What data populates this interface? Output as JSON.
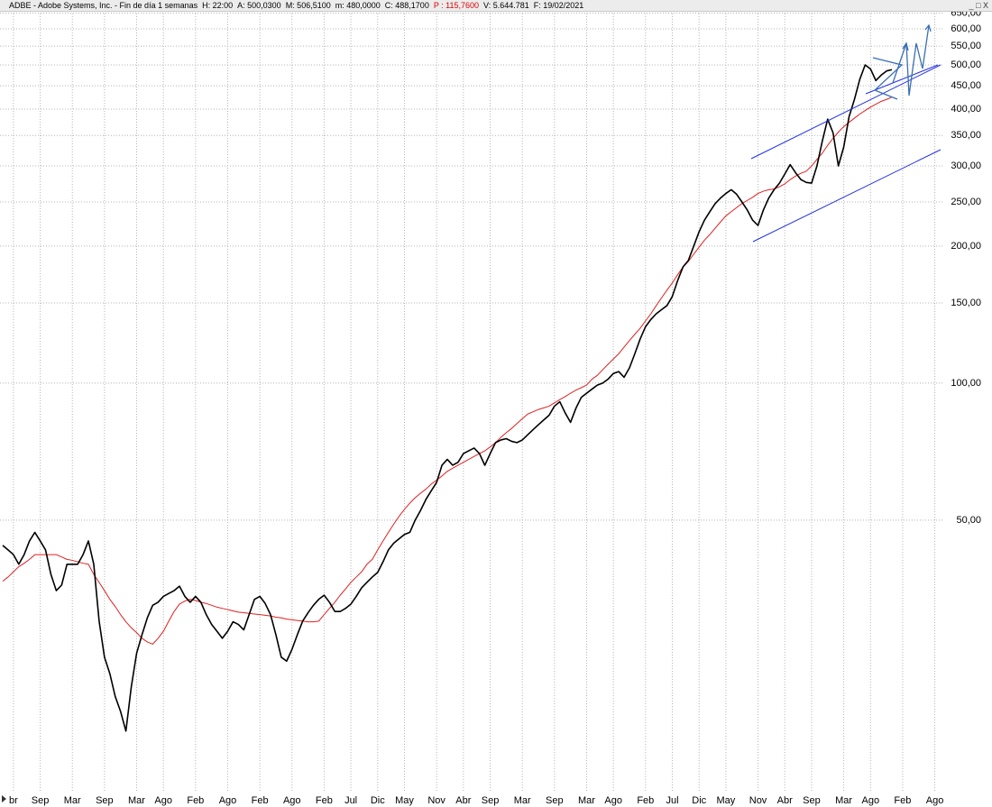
{
  "header": {
    "title": "ADBE - Adobe Systems, Inc. - Fin de día 1 semanas",
    "info": [
      "H: 22:00",
      "A: 500,0300",
      "M: 506,5100",
      "m: 480,0000",
      "C: 488,1700",
      "P : 115,7600",
      "V: 5.644.781",
      "F: 19/02/2021"
    ]
  },
  "chart_data": {
    "type": "line",
    "yscale": "log",
    "grid": true,
    "ylim": [
      12.66,
      663.5
    ],
    "yticks": [
      {
        "value": 50,
        "label": "50,00"
      },
      {
        "value": 100,
        "label": "100,00"
      },
      {
        "value": 150,
        "label": "150,00"
      },
      {
        "value": 200,
        "label": "200,00"
      },
      {
        "value": 250,
        "label": "250,00"
      },
      {
        "value": 300,
        "label": "300,00"
      },
      {
        "value": 350,
        "label": "350,00"
      },
      {
        "value": 400,
        "label": "400,00"
      },
      {
        "value": 450,
        "label": "450,00"
      },
      {
        "value": 500,
        "label": "500,00"
      },
      {
        "value": 550,
        "label": "550,00"
      },
      {
        "value": 600,
        "label": "600,00"
      },
      {
        "value": 650,
        "label": "650,00"
      }
    ],
    "categories": [
      null,
      null,
      "br",
      null,
      null,
      null,
      null,
      "Sep",
      null,
      null,
      null,
      null,
      null,
      "Mar",
      null,
      null,
      null,
      null,
      null,
      "Sep",
      null,
      null,
      null,
      null,
      null,
      "Mar",
      null,
      null,
      null,
      null,
      "Ago",
      null,
      null,
      null,
      null,
      null,
      "Feb",
      null,
      null,
      null,
      null,
      null,
      "Ago",
      null,
      null,
      null,
      null,
      null,
      "Feb",
      null,
      null,
      null,
      null,
      null,
      "Ago",
      null,
      null,
      null,
      null,
      null,
      "Feb",
      null,
      null,
      null,
      null,
      "Jul",
      null,
      null,
      null,
      null,
      "Dic",
      null,
      null,
      null,
      null,
      "May",
      null,
      null,
      null,
      null,
      null,
      "Nov",
      null,
      null,
      null,
      null,
      "Abr",
      null,
      null,
      null,
      null,
      "Sep",
      null,
      null,
      null,
      null,
      null,
      "Mar",
      null,
      null,
      null,
      null,
      null,
      "Sep",
      null,
      null,
      null,
      null,
      null,
      "Mar",
      null,
      null,
      null,
      null,
      "Ago",
      null,
      null,
      null,
      null,
      null,
      "Feb",
      null,
      null,
      null,
      null,
      "Jul",
      null,
      null,
      null,
      null,
      "Dic",
      null,
      null,
      null,
      null,
      "May",
      null,
      null,
      null,
      null,
      null,
      "Nov",
      null,
      null,
      null,
      null,
      "Abr",
      null,
      null,
      null,
      null,
      "Sep",
      null,
      null,
      null,
      null,
      null,
      "Mar",
      null,
      null,
      null,
      null,
      "Ago",
      null,
      null,
      null,
      null,
      null,
      "Feb",
      null,
      null,
      null,
      null,
      null,
      "Ago"
    ],
    "series": [
      {
        "color": "#000000",
        "values": [
          44,
          43,
          42,
          40,
          42,
          45,
          47,
          45,
          43,
          38,
          35,
          36,
          40,
          40,
          40,
          42,
          45,
          40,
          30,
          25,
          23,
          20.5,
          19,
          17.2,
          21.5,
          25.5,
          28,
          30.5,
          32.5,
          33,
          34,
          34.5,
          35,
          35.8,
          34,
          33,
          34,
          33,
          31,
          29.5,
          28.5,
          27.5,
          28.5,
          29.9,
          29.5,
          28.7,
          31,
          33.5,
          34,
          32.8,
          31,
          28,
          25,
          24.5,
          26,
          28,
          30,
          31.3,
          32.5,
          33.5,
          34.2,
          33,
          31.5,
          31.5,
          32,
          32.7,
          34,
          35.5,
          36.5,
          37.5,
          38.4,
          40.5,
          43,
          44.5,
          45.5,
          46.5,
          47,
          50,
          52.5,
          55.5,
          58,
          60.5,
          66,
          68,
          66,
          67,
          70,
          71,
          72,
          70,
          66,
          70,
          74,
          75,
          75.5,
          74.5,
          74,
          75,
          77,
          79,
          81,
          83,
          85,
          89,
          91,
          86,
          82,
          88,
          93,
          95,
          97,
          99,
          100,
          102,
          105,
          106,
          103,
          108,
          116,
          125,
          133,
          138,
          142,
          145,
          148,
          155,
          168,
          180,
          186,
          200,
          215,
          228,
          238,
          248,
          255,
          261,
          266,
          260,
          250,
          240,
          228,
          222,
          240,
          255,
          266,
          275,
          288,
          302,
          290,
          280,
          276,
          275,
          300,
          340,
          380,
          355,
          300,
          330,
          385,
          420,
          465,
          500,
          490,
          462,
          475,
          485,
          488.17,
          null,
          null,
          null,
          null,
          null,
          null,
          null,
          null
        ]
      },
      {
        "color": "#e02020",
        "values": [
          36.7,
          37.5,
          38.5,
          39.5,
          40.2,
          41,
          42,
          42,
          42,
          42,
          42,
          41.5,
          41,
          40.8,
          40.5,
          40.2,
          40,
          38,
          36.5,
          35,
          33.5,
          32.3,
          31,
          29.9,
          29,
          28.3,
          27.5,
          27,
          26.7,
          27.5,
          28.5,
          30,
          31.5,
          32.7,
          33.2,
          33.5,
          33.3,
          33,
          32.8,
          32.5,
          32.2,
          32,
          31.8,
          31.6,
          31.4,
          31.3,
          31.2,
          31.1,
          31,
          30.9,
          30.8,
          30.6,
          30.5,
          30.3,
          30.2,
          30.1,
          30,
          29.9,
          29.9,
          30,
          31,
          32,
          33,
          34.2,
          35.3,
          36.5,
          37.5,
          38.5,
          40,
          41,
          43,
          45,
          47,
          49,
          51,
          52.8,
          54.5,
          56,
          57.3,
          58.5,
          60,
          61.2,
          62.5,
          64,
          65,
          66,
          67,
          68,
          69,
          70,
          71,
          72.4,
          74,
          76,
          77.8,
          79.5,
          81.5,
          83.5,
          85.5,
          86.5,
          87.5,
          88.2,
          89,
          90.5,
          92,
          93.4,
          95,
          96.5,
          97.7,
          99,
          102,
          104,
          107,
          110,
          113,
          116,
          120,
          124,
          128,
          132,
          137,
          142,
          148,
          154,
          160,
          166,
          173,
          180,
          185,
          192,
          199,
          206,
          212,
          219,
          226,
          233,
          238,
          243,
          248,
          252,
          256,
          261,
          264,
          266,
          267,
          270,
          274,
          280,
          285,
          289,
          292,
          300,
          310,
          320,
          333,
          345,
          356,
          366,
          374,
          382,
          390,
          397,
          404,
          410,
          416,
          420,
          425,
          null,
          null,
          null,
          null,
          null,
          null,
          null,
          null
        ]
      }
    ]
  }
}
